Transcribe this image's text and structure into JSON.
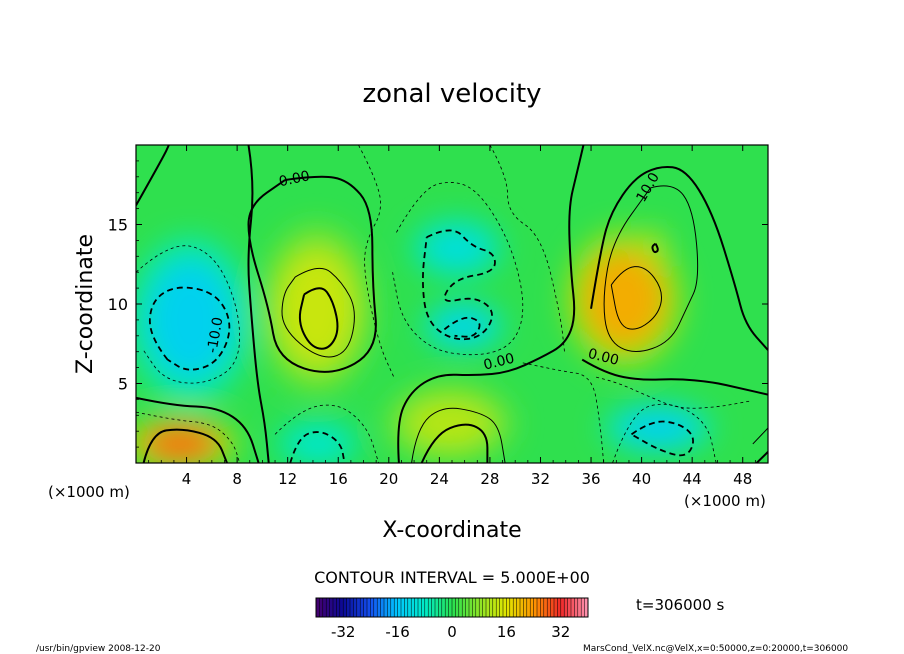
{
  "chart_data": {
    "type": "heatmap",
    "title": "zonal velocity",
    "xlabel": "X-coordinate",
    "ylabel": "Z-coordinate",
    "x_unit_left": "(×1000 m)",
    "x_unit_right": "(×1000 m)",
    "xlim": [
      0,
      50
    ],
    "ylim": [
      0,
      20
    ],
    "x_ticks": [
      4,
      8,
      12,
      16,
      20,
      24,
      28,
      32,
      36,
      40,
      44,
      48
    ],
    "y_ticks": [
      5,
      10,
      15
    ],
    "contour_interval_text": "CONTOUR INTERVAL = 5.000E+00",
    "time_label": "t=306000 s",
    "colorbar": {
      "min": -40,
      "max": 40,
      "ticks": [
        -32,
        -16,
        0,
        16,
        32
      ]
    },
    "contour_labels": [
      {
        "text": "0.00",
        "x": 12.6,
        "y": 17.6
      },
      {
        "text": "10.0",
        "x": 40.8,
        "y": 17.2
      },
      {
        "text": "-10.0",
        "x": 6.6,
        "y": 8.0
      },
      {
        "text": "0.00",
        "x": 28.8,
        "y": 6.1
      },
      {
        "text": "0.00",
        "x": 36.9,
        "y": 6.4
      }
    ],
    "features": [
      {
        "type": "min",
        "x": 4.3,
        "z": 9.0,
        "value": -14
      },
      {
        "type": "max",
        "x": 14.3,
        "z": 9.7,
        "value": 14
      },
      {
        "type": "min",
        "x": 25.4,
        "z": 13.5,
        "value": -11
      },
      {
        "type": "min",
        "x": 25.9,
        "z": 8.6,
        "value": -13
      },
      {
        "type": "max",
        "x": 38.6,
        "z": 10.3,
        "value": 22
      },
      {
        "type": "max",
        "x": 41.0,
        "z": 13.6,
        "value": 12
      },
      {
        "type": "max",
        "x": 3.5,
        "z": 1.2,
        "value": 27
      },
      {
        "type": "min",
        "x": 14.4,
        "z": 1.2,
        "value": -9
      },
      {
        "type": "max",
        "x": 24.8,
        "z": 2.5,
        "value": 12
      },
      {
        "type": "min",
        "x": 41.3,
        "z": 2.2,
        "value": -14
      }
    ]
  },
  "footer": {
    "left": "/usr/bin/gpview  2008-12-20",
    "right": "MarsCond_VelX.nc@VelX,x=0:50000,z=0:20000,t=306000"
  }
}
